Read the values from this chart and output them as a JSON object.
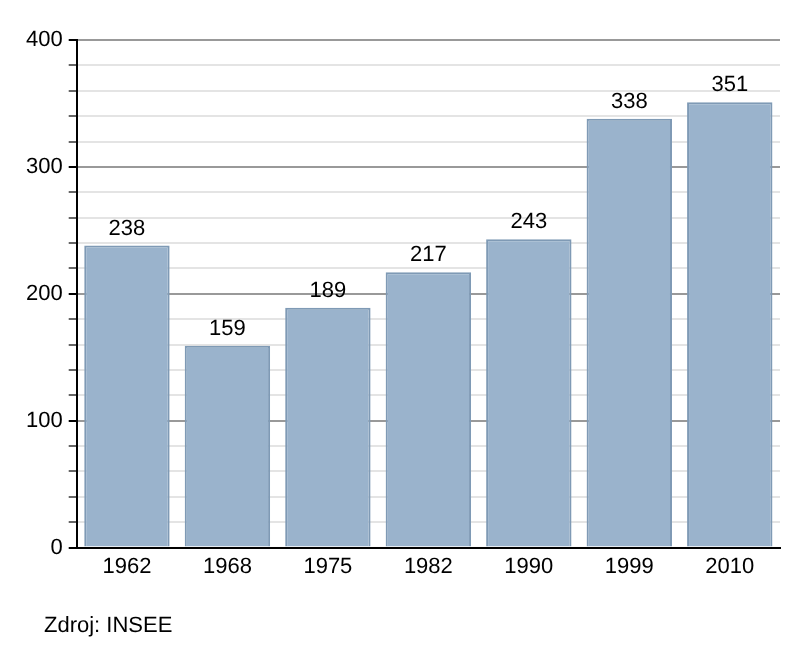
{
  "chart_data": {
    "type": "bar",
    "categories": [
      "1962",
      "1968",
      "1975",
      "1982",
      "1990",
      "1999",
      "2010"
    ],
    "values": [
      238,
      159,
      189,
      217,
      243,
      338,
      351
    ],
    "color": "#9ab3cc",
    "ylim": [
      0,
      400
    ],
    "yticks": [
      0,
      {
        "value": 20,
        "label": null
      },
      {
        "value": 40,
        "label": null
      },
      {
        "value": 60,
        "label": null
      },
      {
        "value": 80,
        "label": null
      },
      100,
      {
        "value": 120,
        "label": null
      },
      {
        "value": 140,
        "label": null
      },
      {
        "value": 160,
        "label": null
      },
      {
        "value": 180,
        "label": null
      },
      200,
      {
        "value": 220,
        "label": null
      },
      {
        "value": 240,
        "label": null
      },
      {
        "value": 260,
        "label": null
      },
      {
        "value": 280,
        "label": null
      },
      300,
      {
        "value": 320,
        "label": null
      },
      {
        "value": 340,
        "label": null
      },
      {
        "value": 360,
        "label": null
      },
      {
        "value": 380,
        "label": null
      },
      400
    ],
    "grid": "y",
    "data_labels": true,
    "legend": false,
    "annotations": [
      "Zdroj: INSEE"
    ]
  }
}
